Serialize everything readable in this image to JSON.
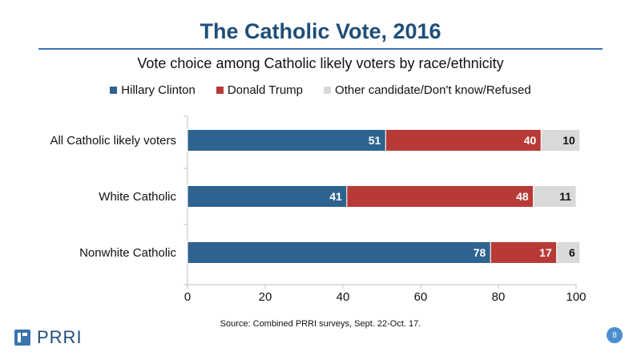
{
  "header": {
    "title": "The Catholic Vote, 2016",
    "subtitle": "Vote choice among Catholic likely voters by race/ethnicity"
  },
  "chart_data": {
    "type": "bar",
    "orientation": "horizontal",
    "stacked": true,
    "categories": [
      "All Catholic likely voters",
      "White Catholic",
      "Nonwhite Catholic"
    ],
    "series": [
      {
        "name": "Hillary Clinton",
        "color": "#2e6390",
        "values": [
          51,
          41,
          78
        ]
      },
      {
        "name": "Donald Trump",
        "color": "#b83a36",
        "values": [
          40,
          48,
          17
        ]
      },
      {
        "name": "Other candidate/Don't know/Refused",
        "color": "#d9d9d9",
        "values": [
          10,
          11,
          6
        ]
      }
    ],
    "xlim": [
      0,
      100
    ],
    "xticks": [
      "0",
      "20",
      "40",
      "60",
      "80",
      "100"
    ],
    "legend_position": "top"
  },
  "footer": {
    "source": "Source: Combined PRRI surveys, Sept. 22-Oct. 17.",
    "logo": "PRRI",
    "page_number": "8"
  }
}
